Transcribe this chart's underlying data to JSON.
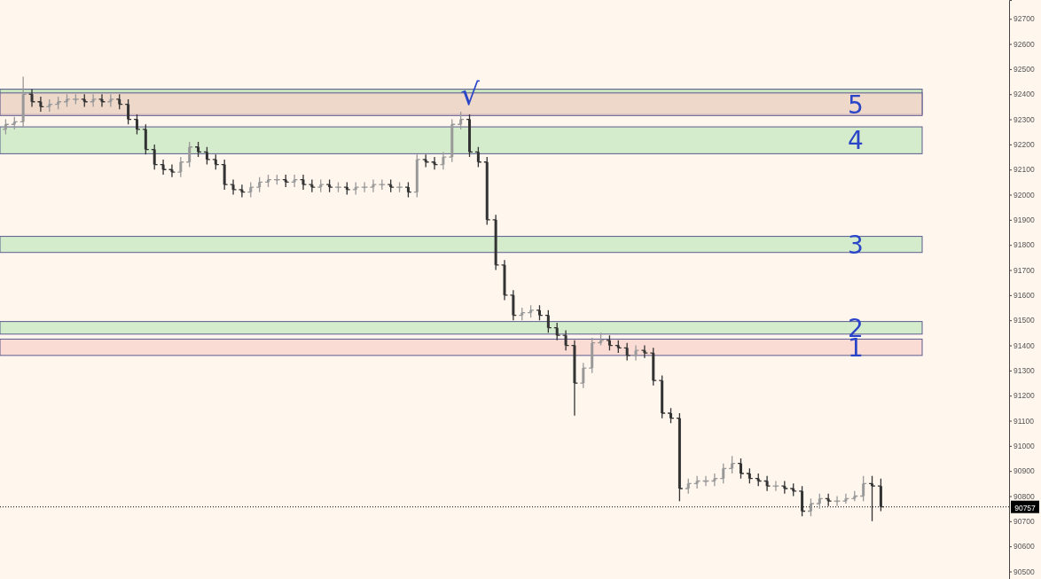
{
  "chart_data": {
    "type": "candlestick",
    "categories": [
      null,
      null,
      null,
      null,
      null,
      null,
      null,
      null,
      null,
      null,
      null,
      null,
      null,
      null,
      null,
      null,
      null,
      null,
      null,
      null,
      null,
      null,
      null,
      null,
      null,
      null,
      null,
      null,
      null,
      null,
      null,
      null,
      null,
      null,
      null,
      null,
      null,
      null,
      null,
      null,
      null,
      null,
      null,
      null,
      null,
      null,
      null,
      null,
      null,
      null,
      null,
      null,
      null,
      null,
      null,
      null,
      null,
      null,
      null,
      null,
      null,
      null,
      null,
      null,
      null,
      null,
      null,
      null,
      null,
      null,
      null,
      null,
      null,
      null,
      null,
      null,
      null,
      null,
      null,
      null,
      null,
      null,
      null,
      null,
      null,
      null,
      null,
      null,
      null,
      null,
      null,
      null,
      null,
      null,
      null,
      null,
      null,
      null,
      null,
      null,
      null,
      null,
      null,
      null,
      null,
      null,
      null,
      null,
      null,
      null,
      null,
      null,
      null,
      null,
      null
    ],
    "ohlc": [
      [
        92260,
        92300,
        92240,
        92280
      ],
      [
        92280,
        92310,
        92260,
        92290
      ],
      [
        92290,
        92470,
        92270,
        92400
      ],
      [
        92400,
        92420,
        92350,
        92370
      ],
      [
        92370,
        92390,
        92330,
        92350
      ],
      [
        92350,
        92380,
        92330,
        92360
      ],
      [
        92360,
        92390,
        92340,
        92370
      ],
      [
        92370,
        92400,
        92350,
        92380
      ],
      [
        92380,
        92400,
        92360,
        92380
      ],
      [
        92380,
        92400,
        92350,
        92370
      ],
      [
        92370,
        92400,
        92350,
        92380
      ],
      [
        92380,
        92400,
        92350,
        92370
      ],
      [
        92370,
        92400,
        92350,
        92380
      ],
      [
        92380,
        92400,
        92340,
        92360
      ],
      [
        92360,
        92380,
        92280,
        92300
      ],
      [
        92300,
        92320,
        92240,
        92260
      ],
      [
        92260,
        92280,
        92160,
        92180
      ],
      [
        92180,
        92200,
        92100,
        92120
      ],
      [
        92120,
        92140,
        92080,
        92100
      ],
      [
        92100,
        92120,
        92070,
        92090
      ],
      [
        92090,
        92150,
        92070,
        92130
      ],
      [
        92130,
        92210,
        92110,
        92190
      ],
      [
        92190,
        92210,
        92150,
        92170
      ],
      [
        92170,
        92190,
        92120,
        92140
      ],
      [
        92140,
        92160,
        92100,
        92120
      ],
      [
        92120,
        92140,
        92020,
        92040
      ],
      [
        92040,
        92060,
        92000,
        92020
      ],
      [
        92020,
        92040,
        91990,
        92010
      ],
      [
        92010,
        92050,
        91990,
        92030
      ],
      [
        92030,
        92070,
        92010,
        92050
      ],
      [
        92050,
        92080,
        92030,
        92060
      ],
      [
        92060,
        92080,
        92040,
        92060
      ],
      [
        92060,
        92080,
        92030,
        92050
      ],
      [
        92050,
        92080,
        92030,
        92060
      ],
      [
        92060,
        92080,
        92020,
        92040
      ],
      [
        92040,
        92060,
        92010,
        92030
      ],
      [
        92030,
        92060,
        92010,
        92040
      ],
      [
        92040,
        92060,
        92010,
        92030
      ],
      [
        92030,
        92050,
        92010,
        92030
      ],
      [
        92030,
        92050,
        92000,
        92020
      ],
      [
        92020,
        92050,
        92000,
        92030
      ],
      [
        92030,
        92050,
        92010,
        92030
      ],
      [
        92030,
        92060,
        92010,
        92040
      ],
      [
        92040,
        92060,
        92020,
        92040
      ],
      [
        92040,
        92060,
        92010,
        92030
      ],
      [
        92030,
        92050,
        92010,
        92030
      ],
      [
        92030,
        92050,
        91990,
        92010
      ],
      [
        92010,
        92160,
        91990,
        92140
      ],
      [
        92140,
        92160,
        92110,
        92130
      ],
      [
        92130,
        92150,
        92100,
        92120
      ],
      [
        92120,
        92170,
        92100,
        92150
      ],
      [
        92150,
        92300,
        92130,
        92280
      ],
      [
        92280,
        92330,
        92260,
        92300
      ],
      [
        92300,
        92320,
        92150,
        92170
      ],
      [
        92170,
        92190,
        92110,
        92130
      ],
      [
        92130,
        92150,
        91880,
        91900
      ],
      [
        91900,
        91920,
        91700,
        91720
      ],
      [
        91720,
        91740,
        91580,
        91600
      ],
      [
        91600,
        91620,
        91500,
        91520
      ],
      [
        91520,
        91550,
        91500,
        91530
      ],
      [
        91530,
        91560,
        91510,
        91540
      ],
      [
        91540,
        91560,
        91500,
        91520
      ],
      [
        91520,
        91540,
        91450,
        91470
      ],
      [
        91470,
        91490,
        91420,
        91440
      ],
      [
        91440,
        91460,
        91380,
        91400
      ],
      [
        91400,
        91420,
        91120,
        91250
      ],
      [
        91250,
        91330,
        91230,
        91310
      ],
      [
        91310,
        91430,
        91290,
        91410
      ],
      [
        91410,
        91450,
        91400,
        91420
      ],
      [
        91420,
        91440,
        91380,
        91400
      ],
      [
        91400,
        91420,
        91370,
        91390
      ],
      [
        91390,
        91410,
        91340,
        91360
      ],
      [
        91360,
        91400,
        91340,
        91380
      ],
      [
        91380,
        91400,
        91350,
        91370
      ],
      [
        91370,
        91390,
        91240,
        91260
      ],
      [
        91260,
        91280,
        91110,
        91130
      ],
      [
        91130,
        91150,
        91090,
        91110
      ],
      [
        91110,
        91130,
        90780,
        90830
      ],
      [
        90830,
        90870,
        90810,
        90850
      ],
      [
        90850,
        90880,
        90830,
        90860
      ],
      [
        90860,
        90880,
        90840,
        90860
      ],
      [
        90860,
        90890,
        90840,
        90870
      ],
      [
        90870,
        90930,
        90850,
        90910
      ],
      [
        90910,
        90960,
        90890,
        90930
      ],
      [
        90930,
        90950,
        90870,
        90890
      ],
      [
        90890,
        90910,
        90850,
        90870
      ],
      [
        90870,
        90890,
        90840,
        90860
      ],
      [
        90860,
        90880,
        90820,
        90840
      ],
      [
        90840,
        90860,
        90820,
        90840
      ],
      [
        90840,
        90860,
        90810,
        90830
      ],
      [
        90830,
        90850,
        90800,
        90820
      ],
      [
        90820,
        90840,
        90720,
        90740
      ],
      [
        90740,
        90790,
        90720,
        90770
      ],
      [
        90770,
        90810,
        90750,
        90790
      ],
      [
        90790,
        90810,
        90760,
        90780
      ],
      [
        90780,
        90800,
        90760,
        90780
      ],
      [
        90780,
        90810,
        90770,
        90790
      ],
      [
        90790,
        90820,
        90780,
        90800
      ],
      [
        90800,
        90880,
        90780,
        90850
      ],
      [
        90850,
        90880,
        90700,
        90840
      ],
      [
        90840,
        90870,
        90740,
        90757
      ],
      null,
      null,
      null,
      null,
      null,
      null,
      null,
      null,
      null,
      null,
      null,
      null,
      null,
      null
    ],
    "colors": [
      "#999999",
      "#999999",
      "#999999",
      "#333333",
      "#333333",
      "#999999",
      "#999999",
      "#999999",
      "#999999",
      "#333333",
      "#999999",
      "#333333",
      "#999999",
      "#333333",
      "#333333",
      "#333333",
      "#333333",
      "#333333",
      "#333333",
      "#333333",
      "#999999",
      "#999999",
      "#333333",
      "#333333",
      "#333333",
      "#333333",
      "#333333",
      "#333333",
      "#999999",
      "#999999",
      "#999999",
      "#999999",
      "#333333",
      "#999999",
      "#333333",
      "#333333",
      "#999999",
      "#333333",
      "#999999",
      "#333333",
      "#999999",
      "#999999",
      "#999999",
      "#999999",
      "#333333",
      "#999999",
      "#333333",
      "#999999",
      "#333333",
      "#333333",
      "#999999",
      "#999999",
      "#999999",
      "#333333",
      "#333333",
      "#333333",
      "#333333",
      "#333333",
      "#333333",
      "#999999",
      "#999999",
      "#333333",
      "#333333",
      "#333333",
      "#333333",
      "#333333",
      "#999999",
      "#999999",
      "#999999",
      "#333333",
      "#333333",
      "#333333",
      "#999999",
      "#333333",
      "#333333",
      "#333333",
      "#333333",
      "#333333",
      "#999999",
      "#999999",
      "#999999",
      "#999999",
      "#999999",
      "#999999",
      "#333333",
      "#333333",
      "#333333",
      "#333333",
      "#999999",
      "#333333",
      "#333333",
      "#333333",
      "#999999",
      "#999999",
      "#333333",
      "#999999",
      "#999999",
      "#999999",
      "#999999",
      "#333333",
      "#333333",
      null,
      null,
      null,
      null,
      null,
      null,
      null,
      null,
      null,
      null,
      null,
      null,
      null,
      null
    ],
    "ylim": [
      90470,
      92775
    ],
    "yticks": [
      90500,
      90600,
      90700,
      90800,
      90900,
      91000,
      91100,
      91200,
      91300,
      91400,
      91500,
      91600,
      91700,
      91800,
      91900,
      92000,
      92100,
      92200,
      92300,
      92400,
      92500,
      92600,
      92700
    ],
    "tick_labels": "y",
    "bands": [
      {
        "axis": "y",
        "from": 92320,
        "to": 92420,
        "label": null,
        "color": "#b5dfae"
      },
      {
        "axis": "y",
        "from": 92315,
        "to": 92405,
        "label": "5",
        "color": "#f9d3cc"
      },
      {
        "axis": "y",
        "from": 92163,
        "to": 92270,
        "label": "4",
        "color": "#c6e8c0"
      },
      {
        "axis": "y",
        "from": 91770,
        "to": 91834,
        "label": "3",
        "color": "#c6e8c0"
      },
      {
        "axis": "y",
        "from": 91445,
        "to": 91495,
        "label": "2",
        "color": "#c6e8c0"
      },
      {
        "axis": "y",
        "from": 91360,
        "to": 91425,
        "label": "1",
        "color": "#f9d3cc"
      }
    ],
    "ref_lines": [
      {
        "axis": "y",
        "value": 90757,
        "label": "90757",
        "line_style": "dotted",
        "color": "#000000"
      }
    ],
    "annotations": [
      "√"
    ]
  }
}
